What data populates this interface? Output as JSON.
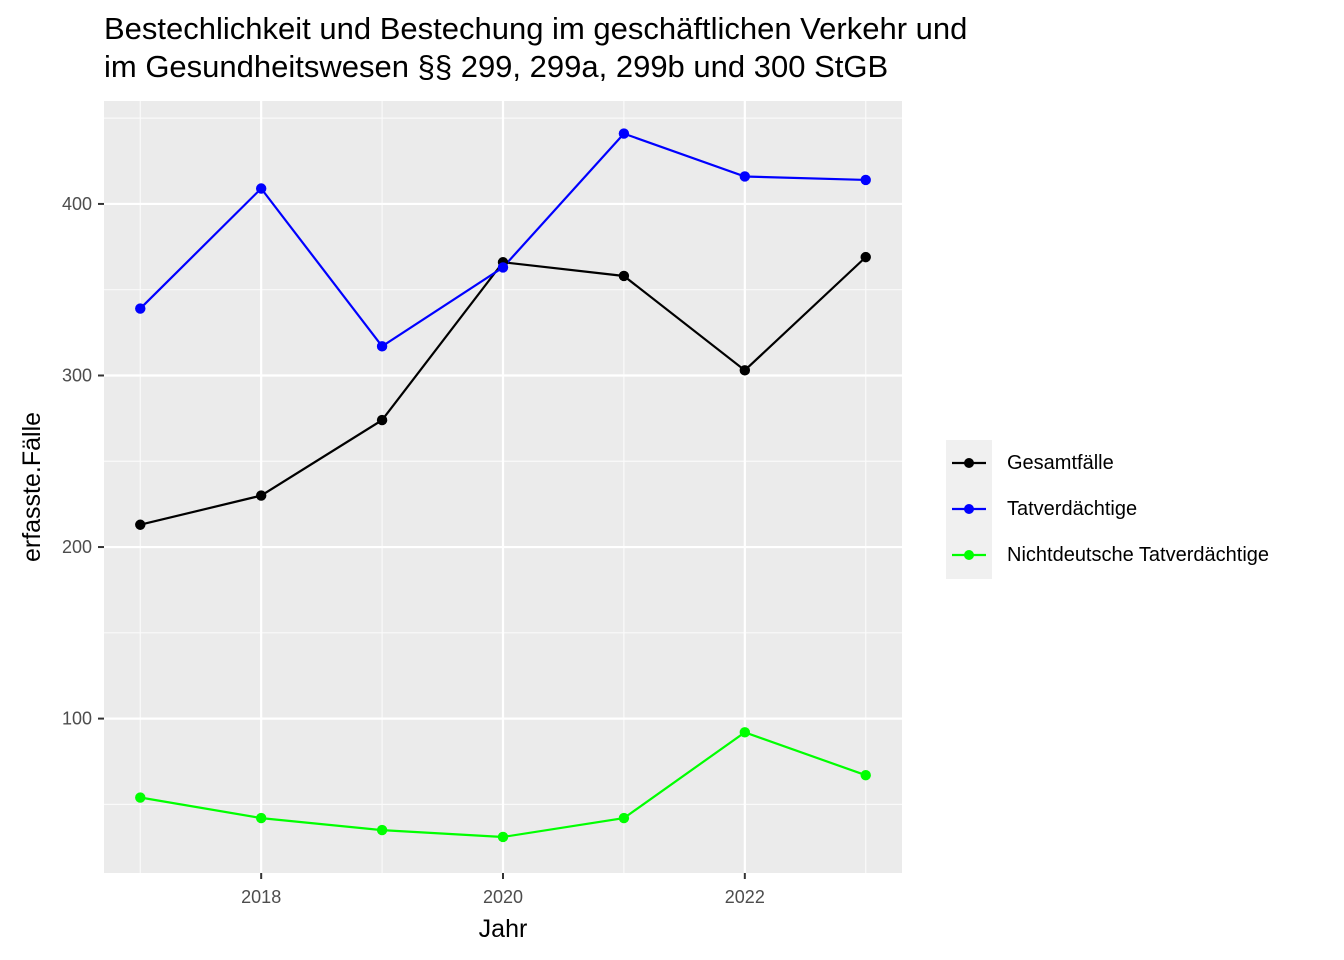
{
  "chart_data": {
    "type": "line",
    "title_lines": [
      "Bestechlichkeit und Bestechung im geschäftlichen Verkehr und",
      "im Gesundheitswesen §§ 299, 299a, 299b und 300 StGB"
    ],
    "xlabel": "Jahr",
    "ylabel": "erfasste.Fälle",
    "x": [
      2017,
      2018,
      2019,
      2020,
      2021,
      2022,
      2023
    ],
    "xlim": [
      2016.7,
      2023.3
    ],
    "ylim": [
      10,
      460
    ],
    "xticks": [
      2018,
      2020,
      2022
    ],
    "yticks": [
      100,
      200,
      300,
      400
    ],
    "grid": true,
    "legend_position": "right",
    "series": [
      {
        "name": "Gesamtfälle",
        "color": "#000000",
        "values": [
          213,
          230,
          274,
          366,
          358,
          303,
          369
        ]
      },
      {
        "name": "Tatverdächtige",
        "color": "#0000ff",
        "values": [
          339,
          409,
          317,
          363,
          441,
          416,
          414
        ]
      },
      {
        "name": "Nichtdeutsche Tatverdächtige",
        "color": "#00ff00",
        "values": [
          54,
          42,
          35,
          31,
          42,
          92,
          67
        ]
      }
    ]
  }
}
